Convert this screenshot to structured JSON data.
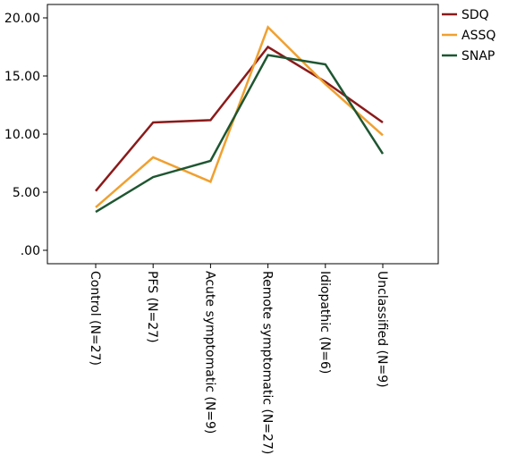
{
  "chart_data": {
    "type": "line",
    "title": "",
    "xlabel": "",
    "ylabel": "",
    "categories": [
      "Control (N=27)",
      "PFS (N=27)",
      "Acute symptomatic (N=9)",
      "Remote symptomatic (N=27)",
      "Idiopathic (N=6)",
      "Unclassified (N=9)"
    ],
    "ylim": [
      0,
      20.0
    ],
    "yticks": [
      ".00",
      "5.00",
      "10.00",
      "15.00",
      "20.00"
    ],
    "ytick_values": [
      0,
      5,
      10,
      15,
      20
    ],
    "grid": false,
    "legend_position": "right",
    "series": [
      {
        "name": "SDQ",
        "color": "#8b1a1a",
        "values": [
          5.1,
          11.0,
          11.2,
          17.5,
          14.5,
          11.0
        ]
      },
      {
        "name": "ASSQ",
        "color": "#f0a030",
        "values": [
          3.7,
          8.0,
          5.9,
          19.2,
          14.3,
          9.9
        ]
      },
      {
        "name": "SNAP",
        "color": "#1e5631",
        "values": [
          3.3,
          6.3,
          7.7,
          16.8,
          16.0,
          8.3
        ]
      }
    ]
  }
}
